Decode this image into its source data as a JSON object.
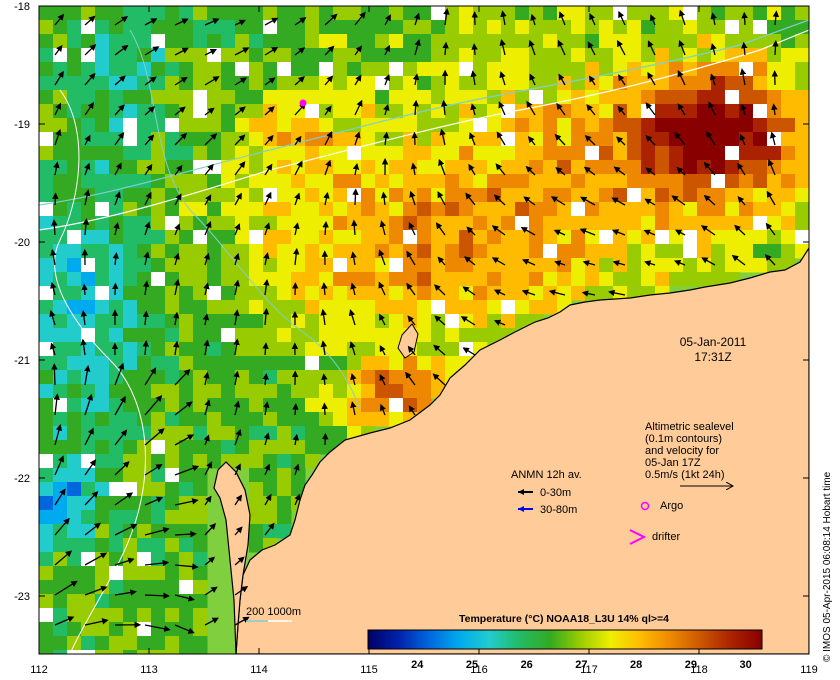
{
  "map": {
    "lon_ticks": [
      "112",
      "113",
      "114",
      "115",
      "116",
      "117",
      "118",
      "119"
    ],
    "lat_ticks": [
      "-18",
      "-19",
      "-20",
      "-21",
      "-22",
      "-23"
    ],
    "lon_range": [
      112,
      119
    ],
    "lat_range": [
      -23.5,
      -18
    ]
  },
  "timestamp": {
    "date": "05-Jan-2011",
    "time": "17:31Z"
  },
  "sealevel_note": {
    "lines": [
      "Altimetric sealevel",
      "(0.1m contours)",
      "and velocity for",
      "05-Jan 17Z",
      "0.5m/s (1kt 24h)"
    ]
  },
  "legend": {
    "anmn_title": "ANMN 12h av.",
    "depth_shallow": "0-30m",
    "depth_deep": "30-80m",
    "argo": "Argo",
    "drifter": "drifter",
    "bathy": "200  1000m",
    "colors": {
      "shallow": "#000000",
      "deep": "#0000ff",
      "argo": "#ff00ff",
      "drifter": "#ff00ff",
      "bathy_200": "#7fd0d0",
      "bathy_1000": "#ffffff",
      "land": "#ffcc99"
    }
  },
  "colorbar": {
    "title": "Temperature (°C) NOAA18_L3U 14% ql>=4",
    "ticks": [
      "24",
      "25",
      "26",
      "27",
      "28",
      "29",
      "30"
    ],
    "range": [
      23.1,
      30.3
    ],
    "colors": [
      "#000066",
      "#0022aa",
      "#0066dd",
      "#00aaee",
      "#22cccc",
      "#22bb66",
      "#33aa22",
      "#99cc00",
      "#eeee00",
      "#ffbb00",
      "#ee8800",
      "#cc5500",
      "#aa2200",
      "#880000"
    ]
  },
  "credit": "© IMOS 05-Apr-2015 06:08:14 Hobart time"
}
